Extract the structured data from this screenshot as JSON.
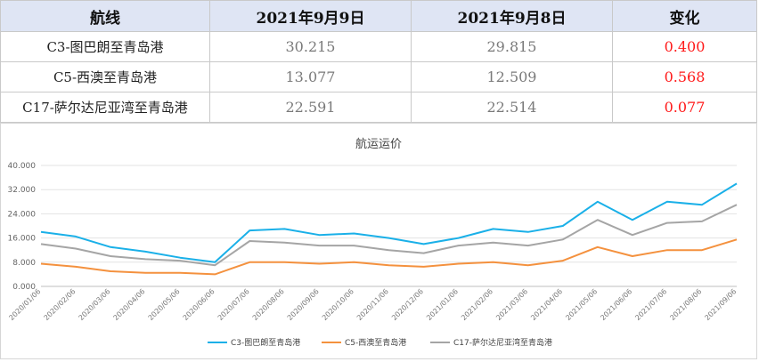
{
  "table": {
    "headers": [
      "航线",
      "2021年9月9日",
      "2021年9月8日",
      "变化"
    ],
    "rows": [
      {
        "route": "C3-图巴朗至青岛港",
        "d9": "30.215",
        "d8": "29.815",
        "change": "0.400"
      },
      {
        "route": "C5-西澳至青岛港",
        "d9": "13.077",
        "d8": "12.509",
        "change": "0.568"
      },
      {
        "route": "C17-萨尔达尼亚湾至青岛港",
        "d9": "22.591",
        "d8": "22.514",
        "change": "0.077"
      }
    ]
  },
  "chart_data": {
    "type": "line",
    "title": "航运运价",
    "ylim": [
      0,
      40
    ],
    "yticks": [
      "0.000",
      "8.000",
      "16.000",
      "24.000",
      "32.000",
      "40.000"
    ],
    "x": [
      "2020/01/06",
      "2020/02/06",
      "2020/03/06",
      "2020/04/06",
      "2020/05/06",
      "2020/06/06",
      "2020/07/06",
      "2020/08/06",
      "2020/09/06",
      "2020/10/06",
      "2020/11/06",
      "2020/12/06",
      "2021/01/06",
      "2021/02/06",
      "2021/03/06",
      "2021/04/06",
      "2021/05/06",
      "2021/06/06",
      "2021/07/06",
      "2021/08/06",
      "2021/09/06"
    ],
    "grid": true,
    "legend_position": "bottom",
    "series": [
      {
        "name": "C3-图巴朗至青岛港",
        "color": "#1ab0e8",
        "values": [
          18.0,
          16.5,
          13.0,
          11.5,
          9.5,
          8.0,
          18.5,
          19.0,
          17.0,
          17.5,
          16.0,
          14.0,
          16.0,
          19.0,
          18.0,
          20.0,
          28.0,
          22.0,
          28.0,
          27.0,
          34.0
        ]
      },
      {
        "name": "C5-西澳至青岛港",
        "color": "#f4913e",
        "values": [
          7.5,
          6.5,
          5.0,
          4.5,
          4.5,
          4.0,
          8.0,
          8.0,
          7.5,
          8.0,
          7.0,
          6.5,
          7.5,
          8.0,
          7.0,
          8.5,
          13.0,
          10.0,
          12.0,
          12.0,
          15.5
        ]
      },
      {
        "name": "C17-萨尔达尼亚湾至青岛港",
        "color": "#a5a5a5",
        "values": [
          14.0,
          12.5,
          10.0,
          9.0,
          8.5,
          7.0,
          15.0,
          14.5,
          13.5,
          13.5,
          12.0,
          11.0,
          13.5,
          14.5,
          13.5,
          15.5,
          22.0,
          17.0,
          21.0,
          21.5,
          27.0
        ]
      }
    ]
  }
}
